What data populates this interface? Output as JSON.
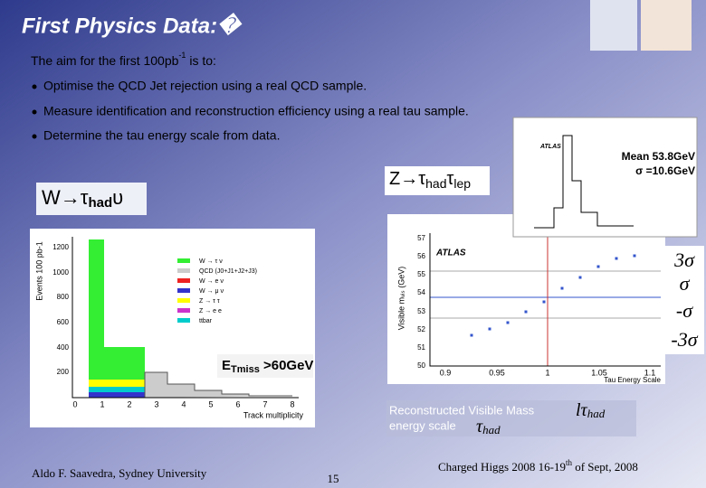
{
  "header": {
    "title": "First Physics Data:�"
  },
  "intro": {
    "text": "The aim for the first 100pb",
    "sup": "-1",
    "rest": " is to:"
  },
  "bullets": [
    "Optimise the QCD Jet rejection using a real QCD sample.",
    "Measure identification and reconstruction efficiency using a real tau sample.",
    "Determine the tau energy scale from data."
  ],
  "w_label": {
    "main": "W→τ",
    "sub": "had",
    "tail": "υ"
  },
  "z_label": {
    "main": "Z→τ",
    "sub1": "had",
    "mid": "τ",
    "sub2": "lep"
  },
  "histogram": {
    "ylabel": "Events 100 pb-1",
    "yticks": [
      "1200",
      "1000",
      "800",
      "600",
      "400",
      "200"
    ],
    "xticks": [
      "0",
      "1",
      "2",
      "3",
      "4",
      "5",
      "6",
      "7",
      "8"
    ],
    "xlabel": "Track multiplicity",
    "legend": [
      "W → τ ν",
      "QCD (J0+J1+J2+J3)",
      "W → e ν",
      "W → μ ν",
      "Z → τ τ",
      "Z → e e",
      "ttbar"
    ]
  },
  "met_label": {
    "main": "E",
    "sub": "Tmiss",
    "rest": " >60GeV"
  },
  "mass_plot": {
    "ylabel": "Visible mᵥᵢₛ (GeV)",
    "brand": "ATLAS",
    "yticks": [
      "57",
      "56",
      "55",
      "54",
      "53",
      "52",
      "51",
      "50"
    ],
    "xticks": [
      "0.9",
      "0.95",
      "1",
      "1.05",
      "1.1"
    ],
    "xlabel": "Tau Energy Scale"
  },
  "inset": {
    "brand": "ATLAS",
    "mean": "Mean 53.8GeV",
    "sigma": "σ =10.6GeV"
  },
  "sigma_labels": [
    "3σ",
    "σ",
    "-σ",
    "-3σ"
  ],
  "caption": {
    "line1": "Reconstructed Visible Mass",
    "line2": "energy scale",
    "math1": "lτ",
    "math1_sub": "had",
    "math2": "τ",
    "math2_sub": "had"
  },
  "footer": {
    "author": "Aldo F. Saavedra, Sydney University",
    "page": "15",
    "event": "Charged Higgs 2008  16-19",
    "event_sup": "th",
    "event_rest": " of Sept, 2008"
  }
}
